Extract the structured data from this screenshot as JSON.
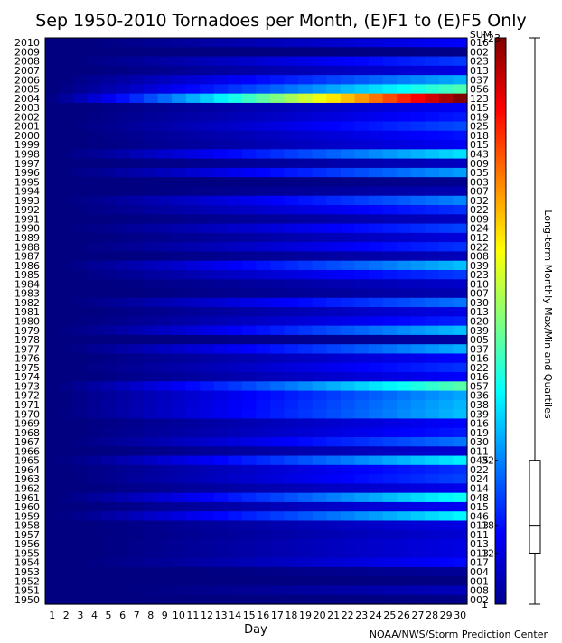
{
  "chart_data": {
    "type": "heatmap",
    "title": "Sep 1950-2010 Tornadoes per Month, (E)F1 to (E)F5 Only",
    "xlabel": "Day",
    "ylabel": "",
    "x": [
      1,
      2,
      3,
      4,
      5,
      6,
      7,
      8,
      9,
      10,
      11,
      12,
      13,
      14,
      15,
      16,
      17,
      18,
      19,
      20,
      21,
      22,
      23,
      24,
      25,
      26,
      27,
      28,
      29,
      30
    ],
    "y": [
      2010,
      2009,
      2008,
      2007,
      2006,
      2005,
      2004,
      2003,
      2002,
      2001,
      2000,
      1999,
      1998,
      1997,
      1996,
      1995,
      1994,
      1993,
      1992,
      1991,
      1990,
      1989,
      1988,
      1987,
      1986,
      1985,
      1984,
      1983,
      1982,
      1981,
      1980,
      1979,
      1978,
      1977,
      1976,
      1975,
      1974,
      1973,
      1972,
      1971,
      1970,
      1969,
      1968,
      1967,
      1966,
      1965,
      1964,
      1963,
      1962,
      1961,
      1960,
      1959,
      1958,
      1957,
      1956,
      1955,
      1954,
      1953,
      1952,
      1951,
      1950
    ],
    "sum_header": "SUM",
    "sums": [
      "016",
      "002",
      "023",
      "013",
      "037",
      "056",
      "123",
      "015",
      "019",
      "025",
      "018",
      "015",
      "043",
      "009",
      "035",
      "003",
      "007",
      "032",
      "022",
      "009",
      "024",
      "012",
      "022",
      "008",
      "039",
      "023",
      "010",
      "007",
      "030",
      "013",
      "020",
      "039",
      "005",
      "037",
      "016",
      "022",
      "016",
      "057",
      "036",
      "038",
      "039",
      "016",
      "019",
      "030",
      "011",
      "045",
      "022",
      "024",
      "014",
      "048",
      "015",
      "046",
      "013",
      "011",
      "013",
      "013",
      "017",
      "004",
      "001",
      "008",
      "002"
    ],
    "colorbar": {
      "label": "Long-term Monthly Max/Min and Quartiles",
      "min": 1,
      "q1": 12,
      "median": 18,
      "q3": 32,
      "max": 123,
      "tick_labels": [
        "1",
        "12",
        "18",
        "32",
        "123"
      ]
    },
    "credit": "NOAA/NWS/Storm Prediction Center"
  }
}
